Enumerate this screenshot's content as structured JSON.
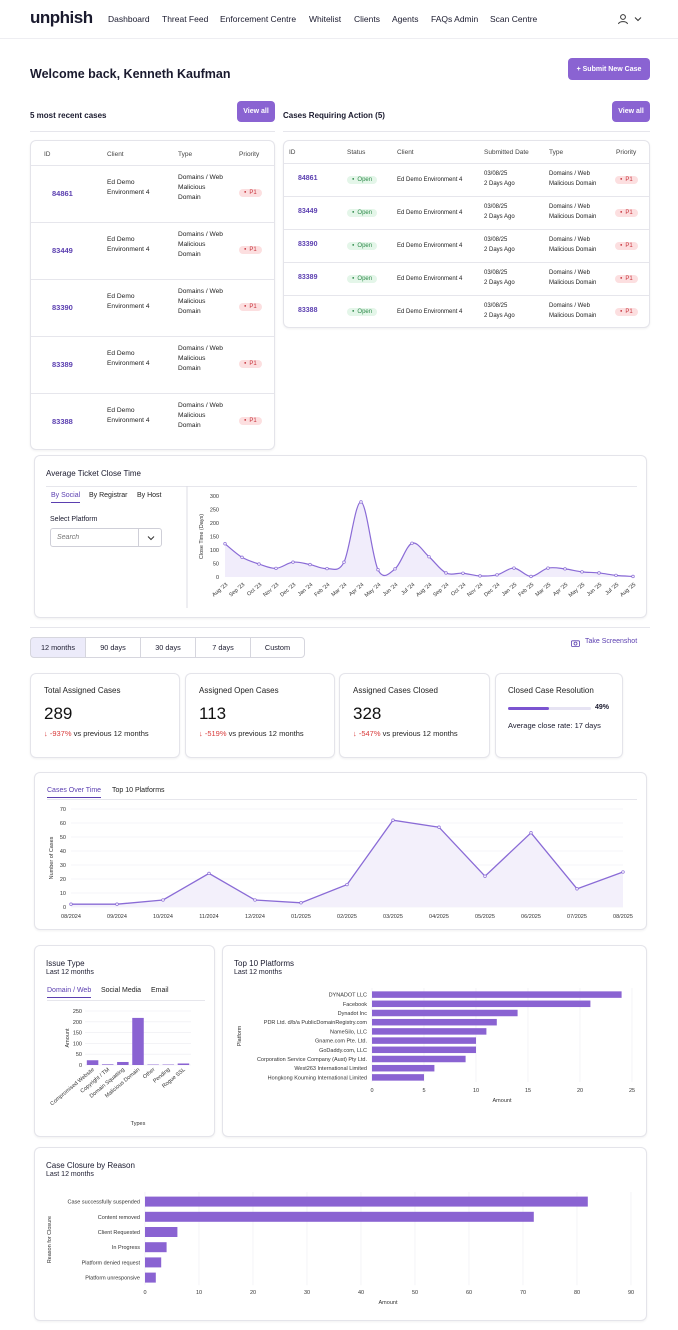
{
  "header": {
    "logo": "unphish",
    "nav": [
      "Dashboard",
      "Threat Feed",
      "Enforcement Centre",
      "Whitelist",
      "Clients",
      "Agents",
      "FAQs Admin",
      "Scan Centre"
    ],
    "user_icon": "user-icon",
    "chevron_icon": "chevron-down-icon"
  },
  "welcome": "Welcome back, Kenneth Kaufman",
  "submit_button": "+ Submit New Case",
  "recent": {
    "title": "5 most recent cases",
    "view_all": "View all",
    "headers": [
      "ID",
      "Client",
      "Type",
      "Priority"
    ],
    "rows": [
      {
        "id": "84861",
        "client": "Ed Demo Environment 4",
        "type": "Domains / Web Malicious Domain",
        "priority": "P1"
      },
      {
        "id": "83449",
        "client": "Ed Demo Environment 4",
        "type": "Domains / Web Malicious Domain",
        "priority": "P1"
      },
      {
        "id": "83390",
        "client": "Ed Demo Environment 4",
        "type": "Domains / Web Malicious Domain",
        "priority": "P1"
      },
      {
        "id": "83389",
        "client": "Ed Demo Environment 4",
        "type": "Domains / Web Malicious Domain",
        "priority": "P1"
      },
      {
        "id": "83388",
        "client": "Ed Demo Environment 4",
        "type": "Domains / Web Malicious Domain",
        "priority": "P1"
      }
    ]
  },
  "action": {
    "title": "Cases Requiring Action (5)",
    "view_all": "View all",
    "headers": [
      "ID",
      "Status",
      "Client",
      "Submitted Date",
      "Type",
      "Priority"
    ],
    "rows": [
      {
        "id": "84861",
        "status": "Open",
        "client": "Ed Demo Environment 4",
        "date": "03/08/25",
        "ago": "2 Days Ago",
        "type1": "Domains / Web",
        "type2": "Malicious Domain",
        "priority": "P1"
      },
      {
        "id": "83449",
        "status": "Open",
        "client": "Ed Demo Environment 4",
        "date": "03/08/25",
        "ago": "2 Days Ago",
        "type1": "Domains / Web",
        "type2": "Malicious Domain",
        "priority": "P1"
      },
      {
        "id": "83390",
        "status": "Open",
        "client": "Ed Demo Environment 4",
        "date": "03/08/25",
        "ago": "2 Days Ago",
        "type1": "Domains / Web",
        "type2": "Malicious Domain",
        "priority": "P1"
      },
      {
        "id": "83389",
        "status": "Open",
        "client": "Ed Demo Environment 4",
        "date": "03/08/25",
        "ago": "2 Days Ago",
        "type1": "Domains / Web",
        "type2": "Malicious Domain",
        "priority": "P1"
      },
      {
        "id": "83388",
        "status": "Open",
        "client": "Ed Demo Environment 4",
        "date": "03/08/25",
        "ago": "2 Days Ago",
        "type1": "Domains / Web",
        "type2": "Malicious Domain",
        "priority": "P1"
      }
    ]
  },
  "close_time": {
    "title": "Average Ticket Close Time",
    "tabs": [
      "By Social",
      "By Registrar",
      "By Host"
    ],
    "select_label": "Select Platform",
    "search_placeholder": "Search"
  },
  "ranges": [
    "12 months",
    "90 days",
    "30 days",
    "7 days",
    "Custom"
  ],
  "screenshot": "Take Screenshot",
  "stats": [
    {
      "title": "Total Assigned Cases",
      "value": "289",
      "delta": "-937%",
      "suffix": "vs previous 12 months"
    },
    {
      "title": "Assigned Open Cases",
      "value": "113",
      "delta": "-519%",
      "suffix": "vs previous 12 months"
    },
    {
      "title": "Assigned Cases Closed",
      "value": "328",
      "delta": "-547%",
      "suffix": "vs previous 12 months"
    }
  ],
  "resolution": {
    "title": "Closed Case Resolution",
    "percent": 49,
    "percent_label": "49%",
    "avg": "Average close rate: 17 days"
  },
  "cases_tabs": [
    "Cases Over Time",
    "Top 10 Platforms"
  ],
  "issue": {
    "title": "Issue Type",
    "subtitle": "Last 12 months",
    "tabs": [
      "Domain / Web",
      "Social Media",
      "Email"
    ]
  },
  "platforms": {
    "title": "Top 10 Platforms",
    "subtitle": "Last 12 months"
  },
  "closure": {
    "title": "Case Closure by Reason",
    "subtitle": "Last 12 months"
  },
  "chart_data": [
    {
      "type": "line",
      "ylabel": "Close Time (Days)",
      "ylim": [
        0,
        300
      ],
      "yticks": [
        0,
        50,
        100,
        150,
        200,
        250,
        300
      ],
      "x": [
        "Aug '23",
        "Sep '23",
        "Oct '23",
        "Nov '23",
        "Dec '23",
        "Jan '24",
        "Feb '24",
        "Mar '24",
        "Apr '24",
        "May '24",
        "Jun '24",
        "Jul '24",
        "Aug '24",
        "Sep '24",
        "Oct '24",
        "Nov '24",
        "Dec '24",
        "Jan '25",
        "Feb '25",
        "Mar '25",
        "Apr '25",
        "May '25",
        "Jun '25",
        "Jul '25",
        "Aug '25"
      ],
      "values": [
        123,
        73,
        48,
        32,
        55,
        46,
        31,
        55,
        278,
        27,
        30,
        125,
        75,
        15,
        14,
        4,
        8,
        33,
        2,
        33,
        30,
        19,
        15,
        6,
        2
      ]
    },
    {
      "type": "area",
      "ylabel": "Number of Cases",
      "ylim": [
        0,
        70
      ],
      "yticks": [
        0,
        10,
        20,
        30,
        40,
        50,
        60,
        70
      ],
      "x": [
        "08/2024",
        "09/2024",
        "10/2024",
        "11/2024",
        "12/2024",
        "01/2025",
        "02/2025",
        "03/2025",
        "04/2025",
        "05/2025",
        "06/2025",
        "07/2025",
        "08/2025"
      ],
      "values": [
        2,
        2,
        5,
        24,
        5,
        3,
        16,
        62,
        57,
        22,
        53,
        13,
        25
      ]
    },
    {
      "type": "bar",
      "xlabel": "Types",
      "ylabel": "Amount",
      "ylim": [
        0,
        250
      ],
      "yticks": [
        0,
        50,
        100,
        150,
        200,
        250
      ],
      "categories": [
        "Compromised Website",
        "Copyright / TM",
        "Domain Squatting",
        "Malicious Domain",
        "Other",
        "Pending",
        "Rogue SSL"
      ],
      "values": [
        22,
        3,
        14,
        218,
        2,
        2,
        7
      ]
    },
    {
      "type": "bar",
      "orientation": "horizontal",
      "xlabel": "Amount",
      "ylabel": "Platform",
      "xlim": [
        0,
        25
      ],
      "xticks": [
        0,
        5,
        10,
        15,
        20,
        25
      ],
      "categories": [
        "DYNADOT LLC",
        "Facebook",
        "Dynadot Inc",
        "PDR Ltd. d/b/a PublicDomainRegistry.com",
        "NameSilo, LLC",
        "Gname.com Pte. Ltd.",
        "GoDaddy.com, LLC",
        "Corporation Service Company (Aust) Pty Ltd.",
        "West263 International Limited",
        "Hongkong Kouming International Limited"
      ],
      "values": [
        24,
        21,
        14,
        12,
        11,
        10,
        10,
        9,
        6,
        5
      ]
    },
    {
      "type": "bar",
      "orientation": "horizontal",
      "xlabel": "Amount",
      "ylabel": "Reason for Closure",
      "xlim": [
        0,
        90
      ],
      "xticks": [
        0,
        10,
        20,
        30,
        40,
        50,
        60,
        70,
        80,
        90
      ],
      "categories": [
        "Case successfully suspended",
        "Content removed",
        "Client Requested",
        "In Progress",
        "Platform denied request",
        "Platform unresponsive"
      ],
      "values": [
        82,
        72,
        6,
        4,
        3,
        2
      ]
    }
  ]
}
